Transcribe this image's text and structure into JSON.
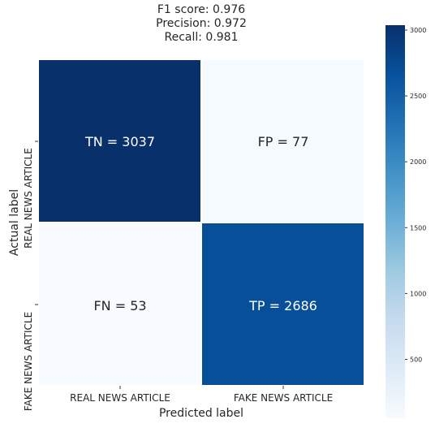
{
  "chart_data": {
    "type": "heatmap",
    "title_lines": [
      "F1 score: 0.976",
      "Precision: 0.972",
      "Recall: 0.981"
    ],
    "xlabel": "Predicted label",
    "ylabel": "Actual label",
    "x_categories": [
      "REAL NEWS ARTICLE",
      "FAKE NEWS ARTICLE"
    ],
    "y_categories": [
      "REAL NEWS ARTICLE",
      "FAKE NEWS ARTICLE"
    ],
    "matrix": [
      [
        3037,
        77
      ],
      [
        53,
        2686
      ]
    ],
    "cell_labels": [
      [
        "TN = 3037",
        "FP = 77"
      ],
      [
        "FN = 53",
        "TP = 2686"
      ]
    ],
    "colormap": "Blues",
    "color_range": [
      53,
      3037
    ],
    "colorbar_ticks": [
      500,
      1000,
      1500,
      2000,
      2500,
      3000
    ]
  }
}
